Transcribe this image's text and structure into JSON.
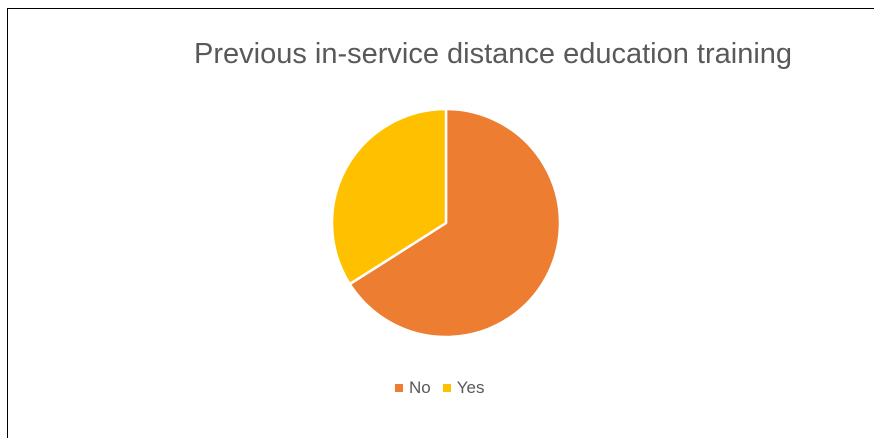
{
  "chart_data": {
    "type": "pie",
    "title": "Previous in-service distance education training",
    "categories": [
      "No",
      "Yes"
    ],
    "values": [
      66,
      34
    ],
    "colors": [
      "#ED7D31",
      "#FFC000"
    ],
    "legend_position": "bottom"
  }
}
